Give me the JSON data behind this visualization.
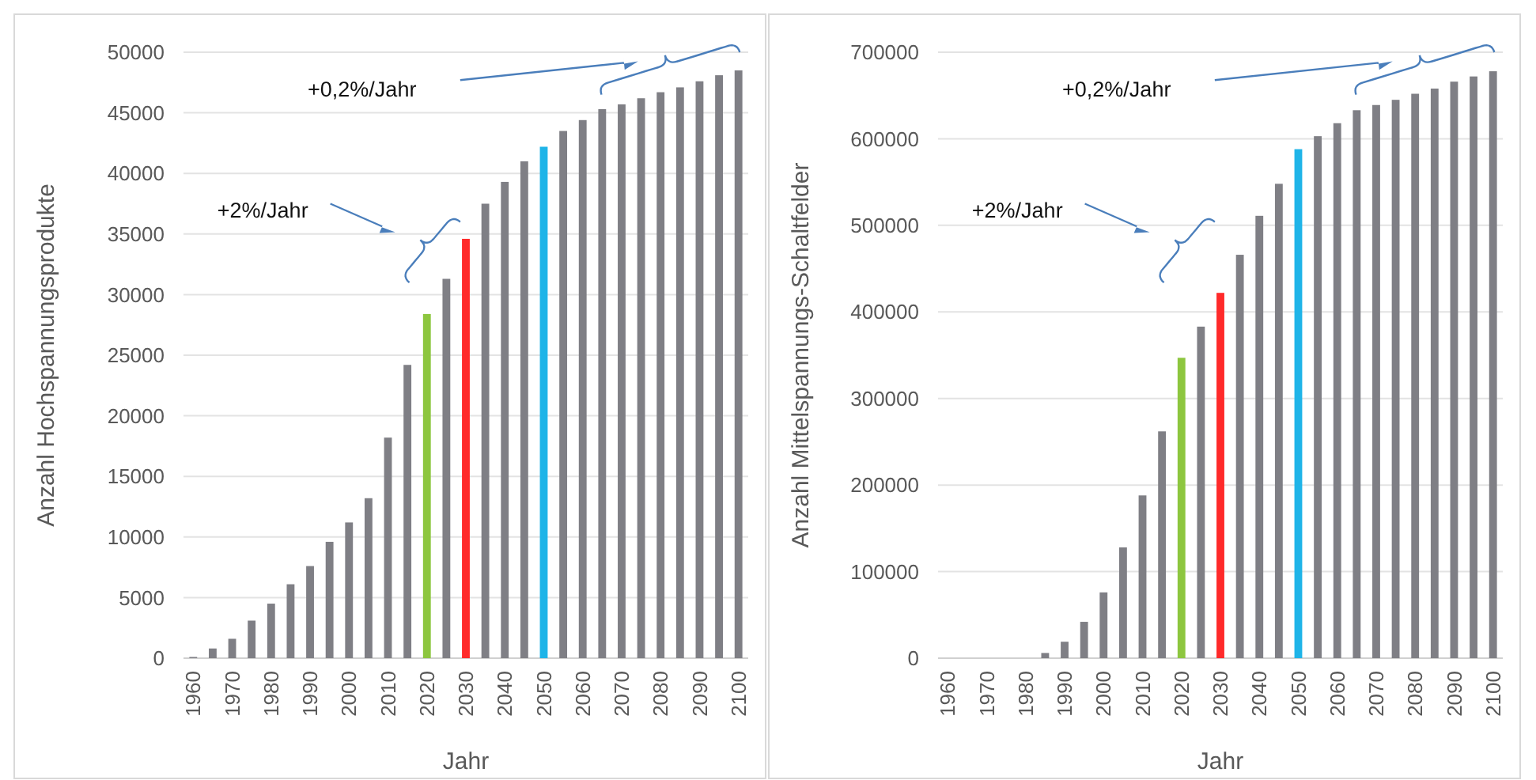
{
  "chart_data": [
    {
      "type": "bar",
      "xlabel": "Jahr",
      "ylabel": "Anzahl Hochspannungsprodukte",
      "categories": [
        "1960",
        null,
        "1970",
        null,
        "1980",
        null,
        "1990",
        null,
        "2000",
        null,
        "2010",
        null,
        "2020",
        null,
        "2030",
        null,
        "2040",
        null,
        "2050",
        null,
        "2060",
        null,
        "2070",
        null,
        "2080",
        null,
        "2090",
        null,
        "2100"
      ],
      "values": [
        100,
        800,
        1600,
        3100,
        4500,
        6100,
        7600,
        9600,
        11200,
        13200,
        18200,
        24200,
        28400,
        31300,
        34600,
        37500,
        39300,
        41000,
        42200,
        43500,
        44400,
        45300,
        45700,
        46200,
        46700,
        47100,
        47600,
        48100,
        48500
      ],
      "colors": [
        "#7f7f85",
        "#7f7f85",
        "#7f7f85",
        "#7f7f85",
        "#7f7f85",
        "#7f7f85",
        "#7f7f85",
        "#7f7f85",
        "#7f7f85",
        "#7f7f85",
        "#7f7f85",
        "#7f7f85",
        "#8dc63f",
        "#7f7f85",
        "#ff2a2a",
        "#7f7f85",
        "#7f7f85",
        "#7f7f85",
        "#1fb4e8",
        "#7f7f85",
        "#7f7f85",
        "#7f7f85",
        "#7f7f85",
        "#7f7f85",
        "#7f7f85",
        "#7f7f85",
        "#7f7f85",
        "#7f7f85",
        "#7f7f85"
      ],
      "ylim": [
        0,
        50000
      ],
      "yticks": [
        0,
        5000,
        10000,
        15000,
        20000,
        25000,
        30000,
        35000,
        40000,
        45000,
        50000
      ],
      "grid": "y",
      "annotations": [
        "+0,2%/Jahr",
        "+2%/Jahr"
      ]
    },
    {
      "type": "bar",
      "xlabel": "Jahr",
      "ylabel": "Anzahl Mittelspannungs-Schaltfelder",
      "categories": [
        "1960",
        null,
        "1970",
        null,
        "1980",
        null,
        "1990",
        null,
        "2000",
        null,
        "2010",
        null,
        "2020",
        null,
        "2030",
        null,
        "2040",
        null,
        "2050",
        null,
        "2060",
        null,
        "2070",
        null,
        "2080",
        null,
        "2090",
        null,
        "2100"
      ],
      "values": [
        0,
        0,
        0,
        0,
        0,
        6000,
        19000,
        42000,
        76000,
        128000,
        188000,
        262000,
        347000,
        383000,
        422000,
        466000,
        511000,
        548000,
        588000,
        603000,
        618000,
        633000,
        639000,
        645000,
        652000,
        658000,
        666000,
        672000,
        678000
      ],
      "colors": [
        "#7f7f85",
        "#7f7f85",
        "#7f7f85",
        "#7f7f85",
        "#7f7f85",
        "#7f7f85",
        "#7f7f85",
        "#7f7f85",
        "#7f7f85",
        "#7f7f85",
        "#7f7f85",
        "#7f7f85",
        "#8dc63f",
        "#7f7f85",
        "#ff2a2a",
        "#7f7f85",
        "#7f7f85",
        "#7f7f85",
        "#1fb4e8",
        "#7f7f85",
        "#7f7f85",
        "#7f7f85",
        "#7f7f85",
        "#7f7f85",
        "#7f7f85",
        "#7f7f85",
        "#7f7f85",
        "#7f7f85",
        "#7f7f85"
      ],
      "ylim": [
        0,
        700000
      ],
      "yticks": [
        0,
        100000,
        200000,
        300000,
        400000,
        500000,
        600000,
        700000
      ],
      "grid": "y",
      "annotations": [
        "+0,2%/Jahr",
        "+2%/Jahr"
      ]
    }
  ]
}
